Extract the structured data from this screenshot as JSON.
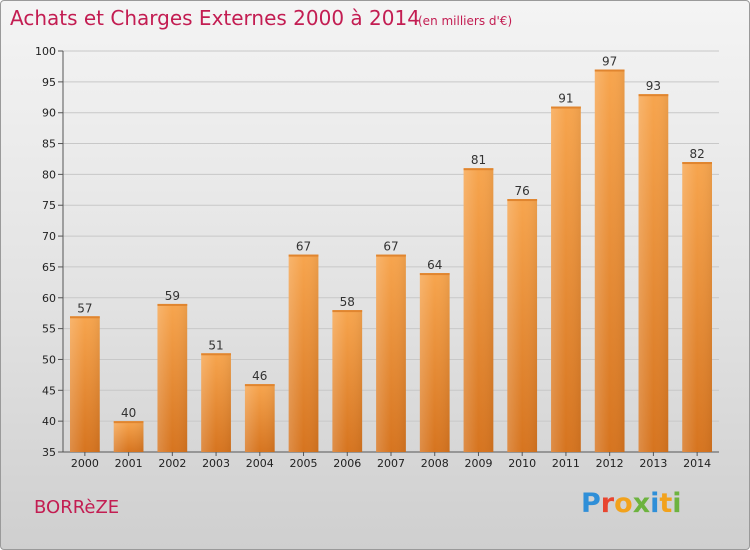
{
  "header": {
    "title": "Achats et Charges Externes 2000 à 2014",
    "unit": "(en milliers d'€)"
  },
  "footer": {
    "city": "BORRèZE",
    "logo_text": [
      "P",
      "r",
      "o",
      "x",
      "i",
      "t",
      "i"
    ]
  },
  "colors": {
    "title": "#c31d52",
    "bar_light": "#f7a54e",
    "bar_dark": "#d6741f",
    "grid": "#c8c8c8"
  },
  "chart_data": {
    "type": "bar",
    "title": "Achats et Charges Externes 2000 à 2014",
    "subtitle": "(en milliers d'€)",
    "xlabel": "",
    "ylabel": "",
    "categories": [
      "2000",
      "2001",
      "2002",
      "2003",
      "2004",
      "2005",
      "2006",
      "2007",
      "2008",
      "2009",
      "2010",
      "2011",
      "2012",
      "2013",
      "2014"
    ],
    "values": [
      57,
      40,
      59,
      51,
      46,
      67,
      58,
      67,
      64,
      81,
      76,
      91,
      97,
      93,
      82
    ],
    "ylim": [
      35,
      100
    ],
    "yticks": [
      35,
      40,
      45,
      50,
      55,
      60,
      65,
      70,
      75,
      80,
      85,
      90,
      95,
      100
    ],
    "grid": true,
    "legend": "none"
  }
}
